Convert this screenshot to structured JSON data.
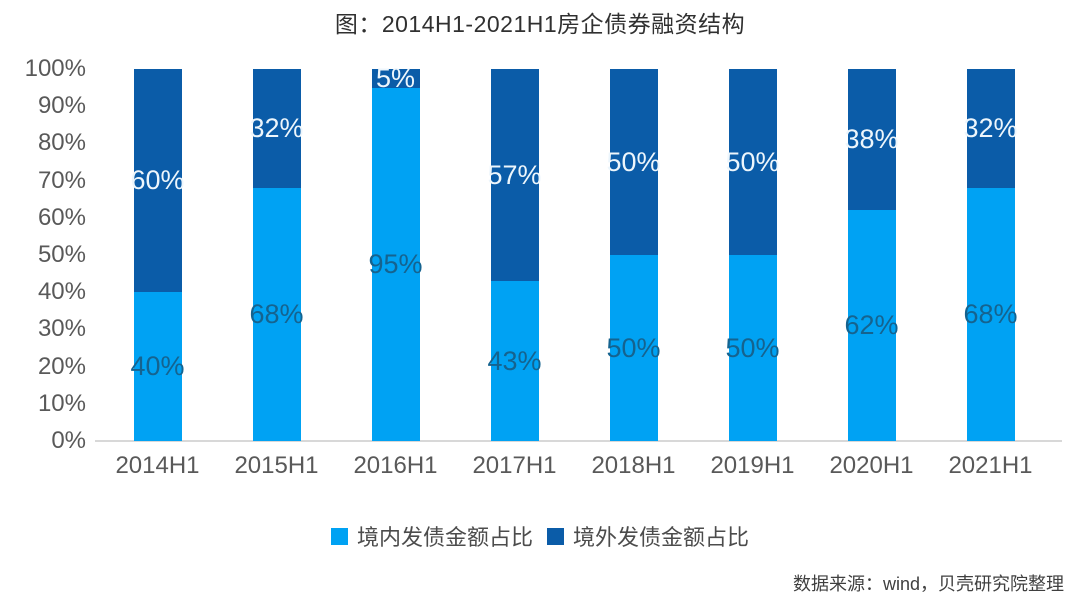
{
  "title": "图：2014H1-2021H1房企债券融资结构",
  "source_note": "数据来源：wind，贝壳研究院整理",
  "colors": {
    "domestic_light_blue": "#00a2f3",
    "overseas_dark_blue": "#0b5ca8",
    "label_on_light_segment": "#15638f",
    "label_on_dark_segment": "#edf6fc",
    "axis_text": "#595959",
    "baseline_gray": "#d8d8d8"
  },
  "legend": [
    {
      "label": "境内发债金额占比",
      "color": "#00a2f3"
    },
    {
      "label": "境外发债金额占比",
      "color": "#0b5ca8"
    }
  ],
  "chart_data": {
    "type": "bar",
    "stacked": true,
    "title": "图：2014H1-2021H1房企债券融资结构",
    "categories": [
      "2014H1",
      "2015H1",
      "2016H1",
      "2017H1",
      "2018H1",
      "2019H1",
      "2020H1",
      "2021H1"
    ],
    "series": [
      {
        "key": "domestic",
        "name": "境内发债金额占比",
        "values": [
          40,
          68,
          95,
          43,
          50,
          50,
          62,
          68
        ],
        "color": "#00a2f3",
        "label_color": "#15638f"
      },
      {
        "key": "overseas",
        "name": "境外发债金额占比",
        "values": [
          60,
          32,
          5,
          57,
          50,
          50,
          38,
          32
        ],
        "color": "#0b5ca8",
        "label_color": "#edf6fc"
      }
    ],
    "value_suffix": "%",
    "y_ticks": [
      "100%",
      "90%",
      "80%",
      "70%",
      "60%",
      "50%",
      "40%",
      "30%",
      "20%",
      "10%",
      "0%"
    ],
    "ylim": [
      0,
      100
    ],
    "grid": false,
    "legend_position": "bottom",
    "xlabel": "",
    "ylabel": ""
  }
}
